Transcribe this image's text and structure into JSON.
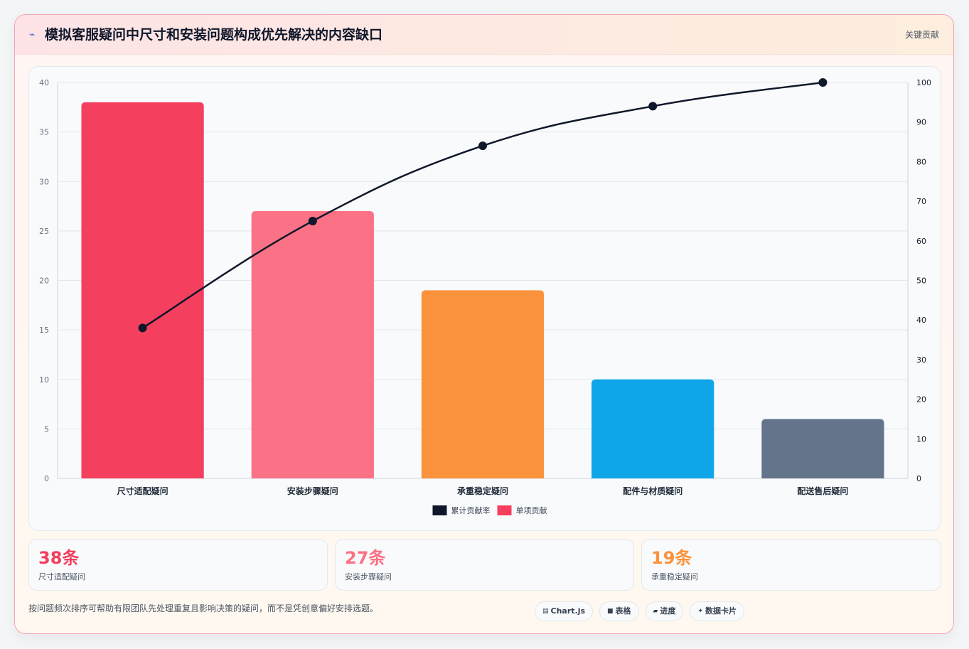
{
  "header": {
    "title": "模拟客服疑问中尺寸和安装问题构成优先解决的内容缺口",
    "tag": "关键贡献",
    "icon": "lightning-icon"
  },
  "chart_data": {
    "type": "bar",
    "categories": [
      "尺寸适配疑问",
      "安装步骤疑问",
      "承重稳定疑问",
      "配件与材质疑问",
      "配送售后疑问"
    ],
    "series": [
      {
        "name": "单项贡献",
        "type": "bar",
        "axis": "left",
        "values": [
          38,
          27,
          19,
          10,
          6
        ],
        "colors": [
          "#f43f5e",
          "#fb7185",
          "#fb923c",
          "#0ea5e9",
          "#64748b"
        ]
      },
      {
        "name": "累计贡献率",
        "type": "line",
        "axis": "right",
        "values": [
          38,
          65,
          84,
          94,
          100
        ],
        "color": "#0f172a"
      }
    ],
    "y_left": {
      "ylim": [
        0,
        40
      ],
      "ticks": [
        0,
        5,
        10,
        15,
        20,
        25,
        30,
        35,
        40
      ]
    },
    "y_right": {
      "ylim": [
        0,
        100
      ],
      "ticks": [
        0,
        10,
        20,
        30,
        40,
        50,
        60,
        70,
        80,
        90,
        100
      ]
    },
    "legend": {
      "placement": "bottom",
      "entries": [
        "累计贡献率",
        "单项贡献"
      ]
    },
    "grid": true
  },
  "stats": [
    {
      "value": "38条",
      "label": "尺寸适配疑问",
      "color": "#f43f5e"
    },
    {
      "value": "27条",
      "label": "安装步骤疑问",
      "color": "#fb7185"
    },
    {
      "value": "19条",
      "label": "承重稳定疑问",
      "color": "#fb923c"
    }
  ],
  "footer": {
    "text": "按问题频次排序可帮助有限团队先处理重复且影响决策的疑问，而不是凭创意偏好安排选题。",
    "chips": [
      {
        "icon": "chart-icon",
        "label": "Chart.js"
      },
      {
        "icon": "table-icon",
        "label": "表格"
      },
      {
        "icon": "progress-icon",
        "label": "进度"
      },
      {
        "icon": "sparkle-icon",
        "label": "数据卡片"
      }
    ]
  }
}
